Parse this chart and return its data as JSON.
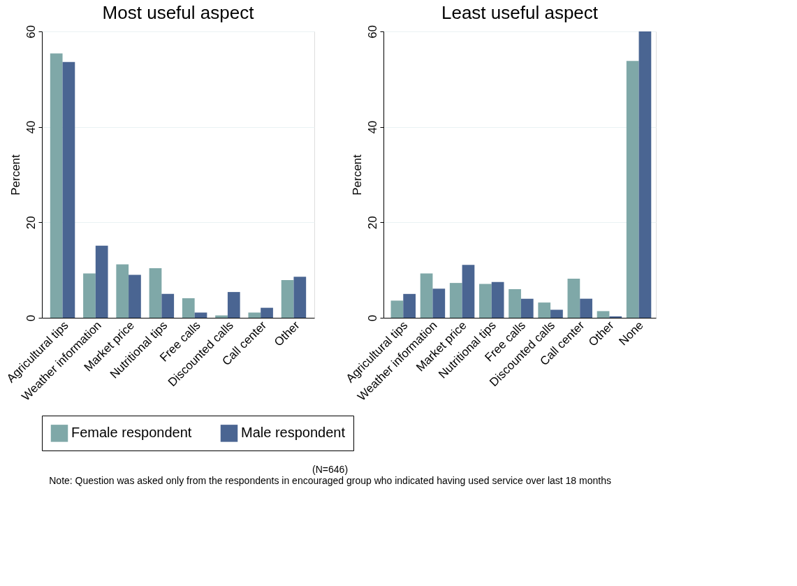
{
  "chart_data": [
    {
      "type": "bar",
      "title": "Most useful aspect",
      "ylabel": "Percent",
      "categories": [
        "Agricultural tips",
        "Weather information",
        "Market price",
        "Nutritional tips",
        "Free calls",
        "Discounted calls",
        "Call center",
        "Other"
      ],
      "series": [
        {
          "name": "Female respondent",
          "color": "#7fa8a8",
          "values": [
            55.4,
            9.3,
            11.2,
            10.4,
            4.1,
            0.5,
            1.1,
            7.9
          ]
        },
        {
          "name": "Male respondent",
          "color": "#4a6592",
          "values": [
            53.6,
            15.1,
            9.0,
            5.0,
            1.1,
            5.4,
            2.1,
            8.6
          ]
        }
      ],
      "ylim": [
        0,
        60
      ],
      "yticks": [
        0,
        20,
        40,
        60
      ],
      "grid": "y",
      "legend": "bottom",
      "annotations": [
        "(N=646)",
        "Note: Question was asked only from the respondents in encouraged group who indicated having used service over last 18 months"
      ]
    },
    {
      "type": "bar",
      "title": "Least useful aspect",
      "ylabel": "Percent",
      "categories": [
        "Agricultural tips",
        "Weather information",
        "Market price",
        "Nutritional tips",
        "Free calls",
        "Discounted calls",
        "Call center",
        "Other",
        "None"
      ],
      "series": [
        {
          "name": "Female respondent",
          "color": "#7fa8a8",
          "values": [
            3.6,
            9.3,
            7.3,
            7.1,
            6.0,
            3.2,
            8.2,
            1.4,
            53.8
          ]
        },
        {
          "name": "Male respondent",
          "color": "#4a6592",
          "values": [
            5.0,
            6.1,
            11.1,
            7.5,
            4.0,
            1.7,
            4.0,
            0.3,
            60.0
          ]
        }
      ],
      "ylim": [
        0,
        60
      ],
      "yticks": [
        0,
        20,
        40,
        60
      ],
      "grid": "y",
      "legend": "bottom"
    }
  ]
}
